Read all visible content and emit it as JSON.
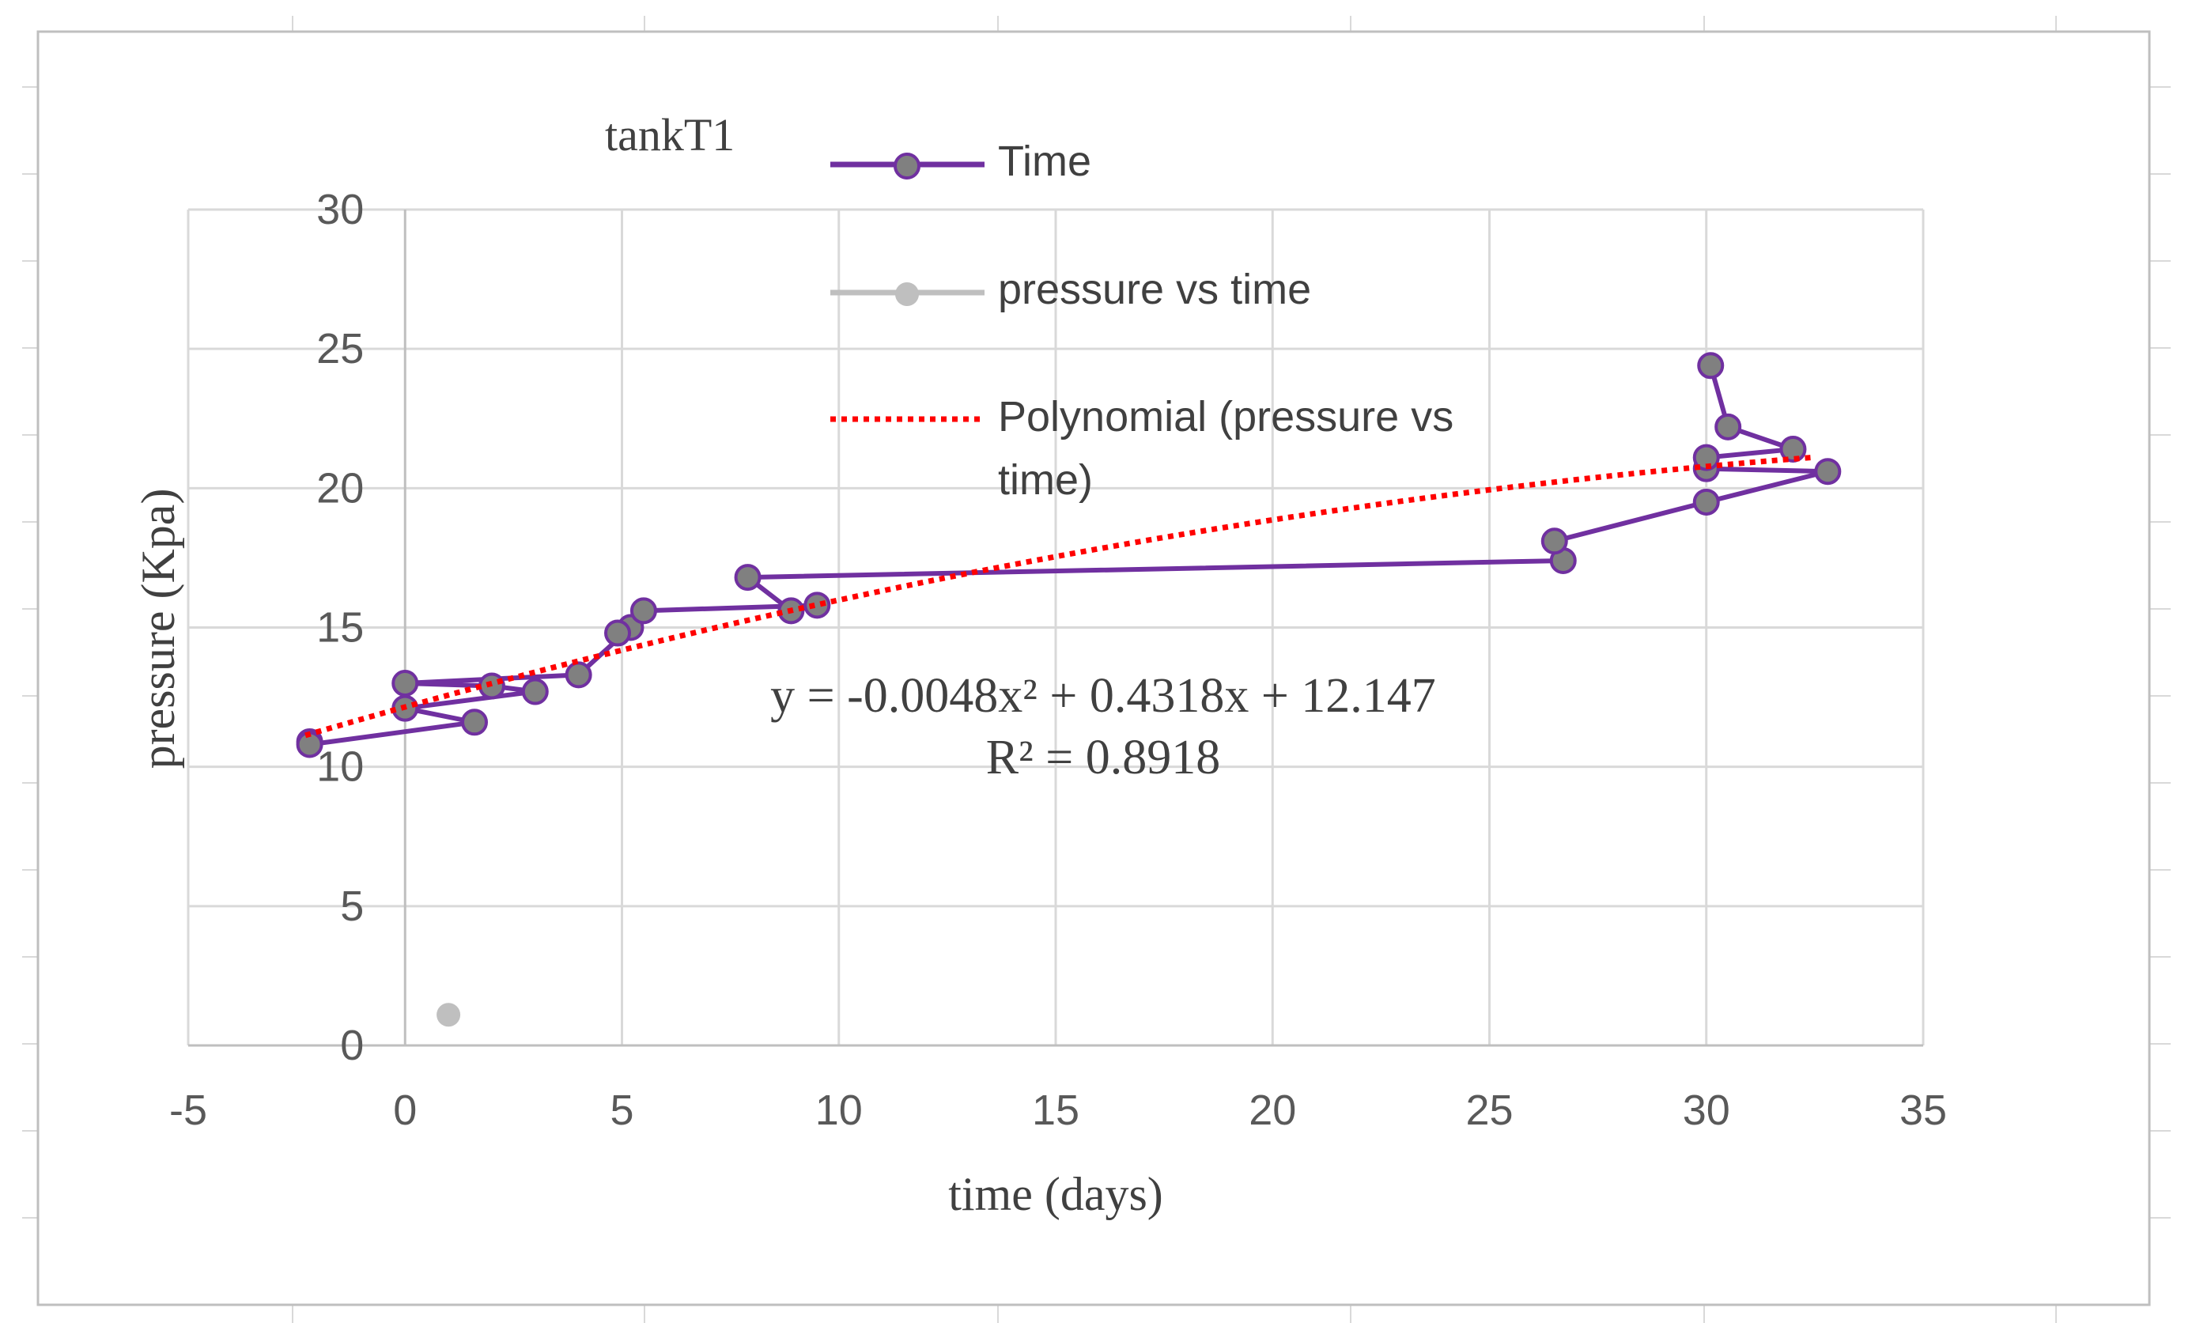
{
  "chart_data": {
    "type": "scatter",
    "title": "tankT1",
    "xlabel": "time (days)",
    "ylabel": "pressure  (Kpa)",
    "xlim": [
      -5,
      35
    ],
    "ylim": [
      0,
      30
    ],
    "xticks": [
      -5,
      0,
      5,
      10,
      15,
      20,
      25,
      30,
      35
    ],
    "yticks": [
      0,
      5,
      10,
      15,
      20,
      25,
      30
    ],
    "grid": true,
    "legend_position": "top-center",
    "series": [
      {
        "name": "Time",
        "style": "line-markers",
        "color": "#7030a0",
        "marker_color": "#808080",
        "points": [
          [
            -2.2,
            10.9
          ],
          [
            -2.2,
            10.8
          ],
          [
            1.6,
            11.6
          ],
          [
            0,
            12.1
          ],
          [
            3,
            12.7
          ],
          [
            2,
            12.9
          ],
          [
            0,
            13
          ],
          [
            4,
            13.3
          ],
          [
            5.2,
            15
          ],
          [
            4.9,
            14.8
          ],
          [
            5.5,
            15.6
          ],
          [
            9.5,
            15.8
          ],
          [
            8.9,
            15.6
          ],
          [
            7.9,
            16.8
          ],
          [
            26.7,
            17.4
          ],
          [
            26.5,
            18.1
          ],
          [
            30,
            19.5
          ],
          [
            32.8,
            20.6
          ],
          [
            30,
            20.7
          ],
          [
            30,
            21.1
          ],
          [
            32,
            21.4
          ],
          [
            30.5,
            22.2
          ],
          [
            30.1,
            24.4
          ]
        ]
      },
      {
        "name": "pressure vs time",
        "style": "markers",
        "color": "#bfbfbf",
        "points": [
          [
            1,
            1.1
          ]
        ]
      },
      {
        "name": "Polynomial (pressure vs time)",
        "style": "dotted-trendline",
        "color": "#ff0000",
        "coefficients": [
          -0.0048,
          0.4318,
          12.147
        ],
        "x_range": [
          -2.3,
          32.5
        ]
      }
    ],
    "annotations": {
      "equation": "y = -0.0048x² + 0.4318x + 12.147",
      "r_squared": "R² = 0.8918"
    }
  },
  "legend": {
    "time_label": "Time",
    "pvt_label": "pressure vs time",
    "poly_label_line1": "Polynomial (pressure vs",
    "poly_label_line2": "time)"
  }
}
